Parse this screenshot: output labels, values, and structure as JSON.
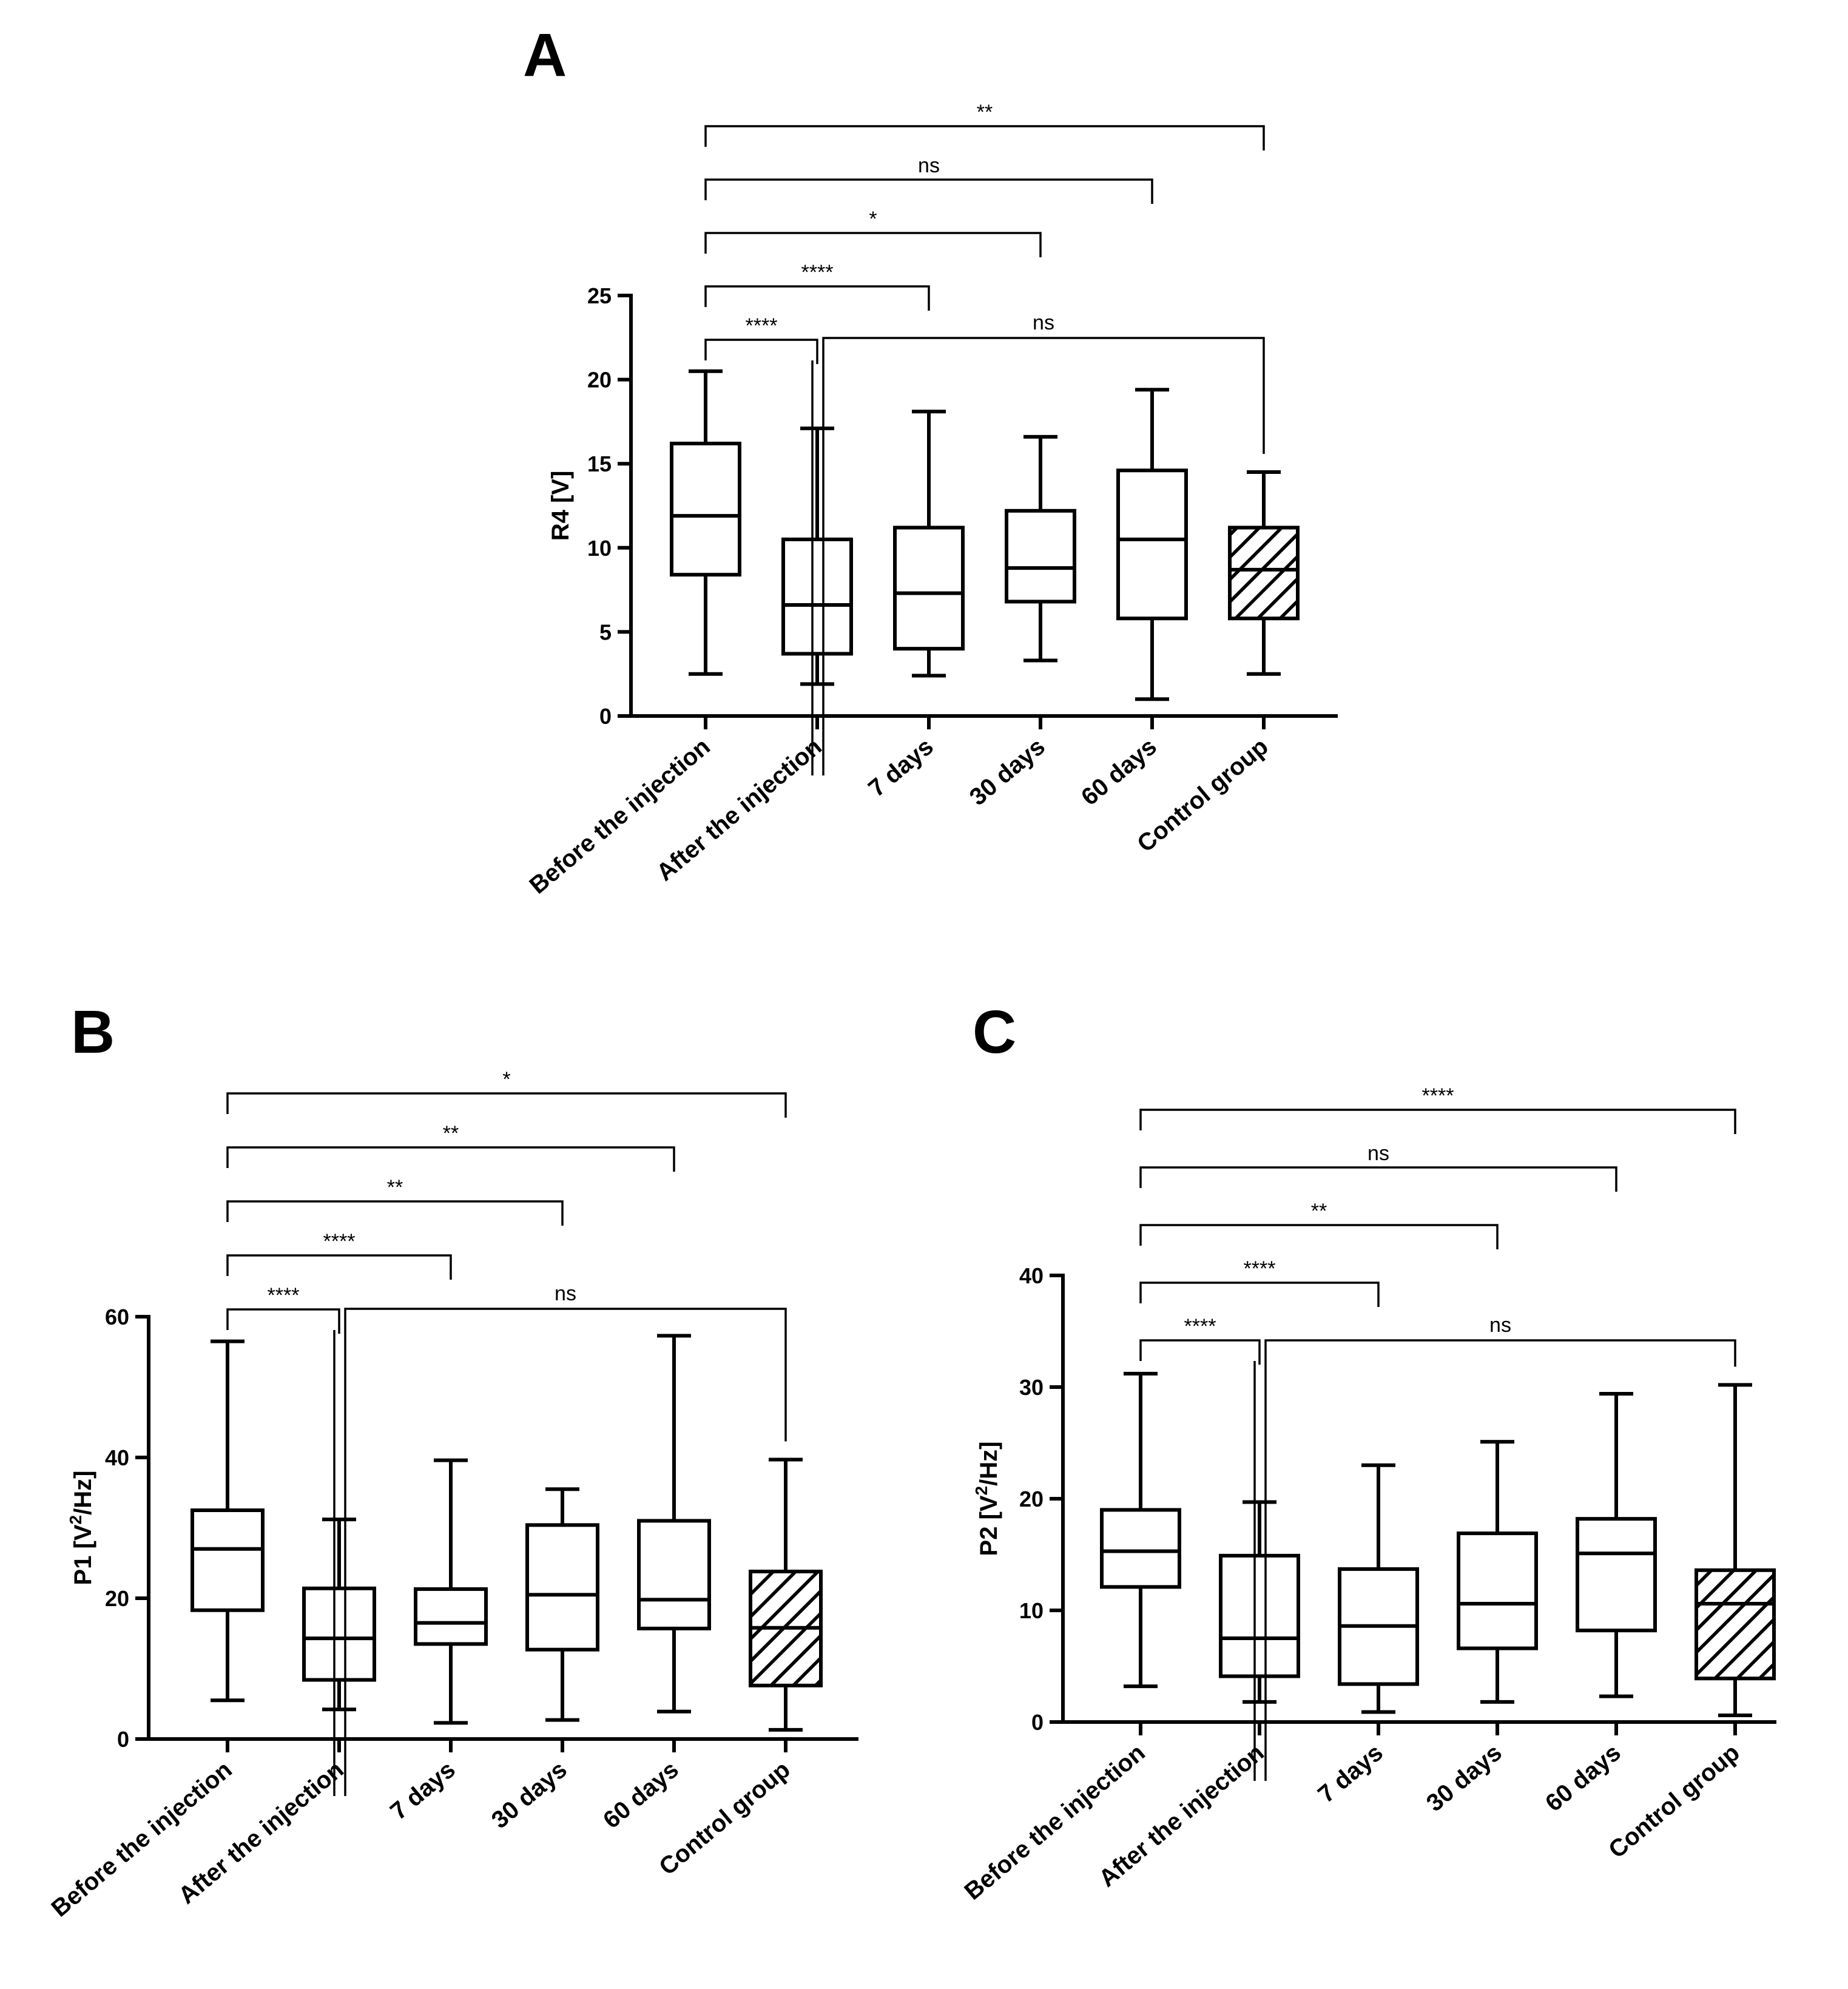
{
  "colors": {
    "line": "#000000",
    "background": "#ffffff",
    "hatch": "#000000"
  },
  "chart_data": [
    {
      "panel": "A",
      "type": "box",
      "ylabel": "R4 [V]",
      "ylabel_super": "",
      "ylabel_tail": "",
      "ylim": [
        0,
        25
      ],
      "yticks": [
        0,
        5,
        10,
        15,
        20,
        25
      ],
      "categories": [
        "Before the injection",
        "After the injection",
        "7 days",
        "30 days",
        "60 days",
        "Control group"
      ],
      "boxes": [
        {
          "min": 2.5,
          "q1": 8.4,
          "median": 11.9,
          "q3": 16.2,
          "max": 20.5,
          "hatched": false
        },
        {
          "min": 1.9,
          "q1": 3.7,
          "median": 6.6,
          "q3": 10.5,
          "max": 17.1,
          "hatched": false
        },
        {
          "min": 2.4,
          "q1": 4.0,
          "median": 7.3,
          "q3": 11.2,
          "max": 18.1,
          "hatched": false
        },
        {
          "min": 3.3,
          "q1": 6.8,
          "median": 8.8,
          "q3": 12.2,
          "max": 16.6,
          "hatched": false
        },
        {
          "min": 1.0,
          "q1": 5.8,
          "median": 10.5,
          "q3": 14.6,
          "max": 19.4,
          "hatched": false
        },
        {
          "min": 2.5,
          "q1": 5.8,
          "median": 8.7,
          "q3": 11.2,
          "max": 14.5,
          "hatched": true
        }
      ],
      "comparisons": [
        {
          "from": 0,
          "to": 1,
          "label": "****",
          "level": 0
        },
        {
          "from": 0,
          "to": 2,
          "label": "****",
          "level": 1
        },
        {
          "from": 0,
          "to": 3,
          "label": "*",
          "level": 2
        },
        {
          "from": 0,
          "to": 4,
          "label": "ns",
          "level": 3
        },
        {
          "from": 0,
          "to": 5,
          "label": "**",
          "level": 4
        },
        {
          "from": 1,
          "to": 5,
          "label": "ns",
          "level": 0
        }
      ]
    },
    {
      "panel": "B",
      "type": "box",
      "ylabel": "P1 [V",
      "ylabel_super": "2",
      "ylabel_tail": "/Hz]",
      "ylim": [
        0,
        60
      ],
      "yticks": [
        0,
        20,
        40,
        60
      ],
      "categories": [
        "Before the injection",
        "After the injection",
        "7 days",
        "30 days",
        "60 days",
        "Control group"
      ],
      "boxes": [
        {
          "min": 5.5,
          "q1": 18.3,
          "median": 27.0,
          "q3": 32.5,
          "max": 56.5,
          "hatched": false
        },
        {
          "min": 4.2,
          "q1": 8.4,
          "median": 14.3,
          "q3": 21.4,
          "max": 31.2,
          "hatched": false
        },
        {
          "min": 2.3,
          "q1": 13.5,
          "median": 16.5,
          "q3": 21.3,
          "max": 39.6,
          "hatched": false
        },
        {
          "min": 2.7,
          "q1": 12.7,
          "median": 20.5,
          "q3": 30.4,
          "max": 35.5,
          "hatched": false
        },
        {
          "min": 3.9,
          "q1": 15.7,
          "median": 19.8,
          "q3": 31.0,
          "max": 57.3,
          "hatched": false
        },
        {
          "min": 1.3,
          "q1": 7.6,
          "median": 15.8,
          "q3": 23.8,
          "max": 39.7,
          "hatched": true
        }
      ],
      "comparisons": [
        {
          "from": 0,
          "to": 1,
          "label": "****",
          "level": 0
        },
        {
          "from": 0,
          "to": 2,
          "label": "****",
          "level": 1
        },
        {
          "from": 0,
          "to": 3,
          "label": "**",
          "level": 2
        },
        {
          "from": 0,
          "to": 4,
          "label": "**",
          "level": 3
        },
        {
          "from": 0,
          "to": 5,
          "label": "*",
          "level": 4
        },
        {
          "from": 1,
          "to": 5,
          "label": "ns",
          "level": 0
        }
      ]
    },
    {
      "panel": "C",
      "type": "box",
      "ylabel": "P2 [V",
      "ylabel_super": "2",
      "ylabel_tail": "/Hz]",
      "ylim": [
        0,
        40
      ],
      "yticks": [
        0,
        10,
        20,
        30,
        40
      ],
      "categories": [
        "Before the injection",
        "After the injection",
        "7 days",
        "30 days",
        "60 days",
        "Control group"
      ],
      "boxes": [
        {
          "min": 3.2,
          "q1": 12.1,
          "median": 15.3,
          "q3": 19.0,
          "max": 31.2,
          "hatched": false
        },
        {
          "min": 1.8,
          "q1": 4.1,
          "median": 7.5,
          "q3": 14.9,
          "max": 19.7,
          "hatched": false
        },
        {
          "min": 0.9,
          "q1": 3.4,
          "median": 8.6,
          "q3": 13.7,
          "max": 23.0,
          "hatched": false
        },
        {
          "min": 1.8,
          "q1": 6.6,
          "median": 10.6,
          "q3": 16.9,
          "max": 25.1,
          "hatched": false
        },
        {
          "min": 2.3,
          "q1": 8.2,
          "median": 15.1,
          "q3": 18.2,
          "max": 29.4,
          "hatched": false
        },
        {
          "min": 0.6,
          "q1": 3.9,
          "median": 10.6,
          "q3": 13.6,
          "max": 30.2,
          "hatched": true
        }
      ],
      "comparisons": [
        {
          "from": 0,
          "to": 1,
          "label": "****",
          "level": 0
        },
        {
          "from": 0,
          "to": 2,
          "label": "****",
          "level": 1
        },
        {
          "from": 0,
          "to": 3,
          "label": "**",
          "level": 2
        },
        {
          "from": 0,
          "to": 4,
          "label": "ns",
          "level": 3
        },
        {
          "from": 0,
          "to": 5,
          "label": "****",
          "level": 4
        },
        {
          "from": 1,
          "to": 5,
          "label": "ns",
          "level": 0
        }
      ]
    }
  ]
}
